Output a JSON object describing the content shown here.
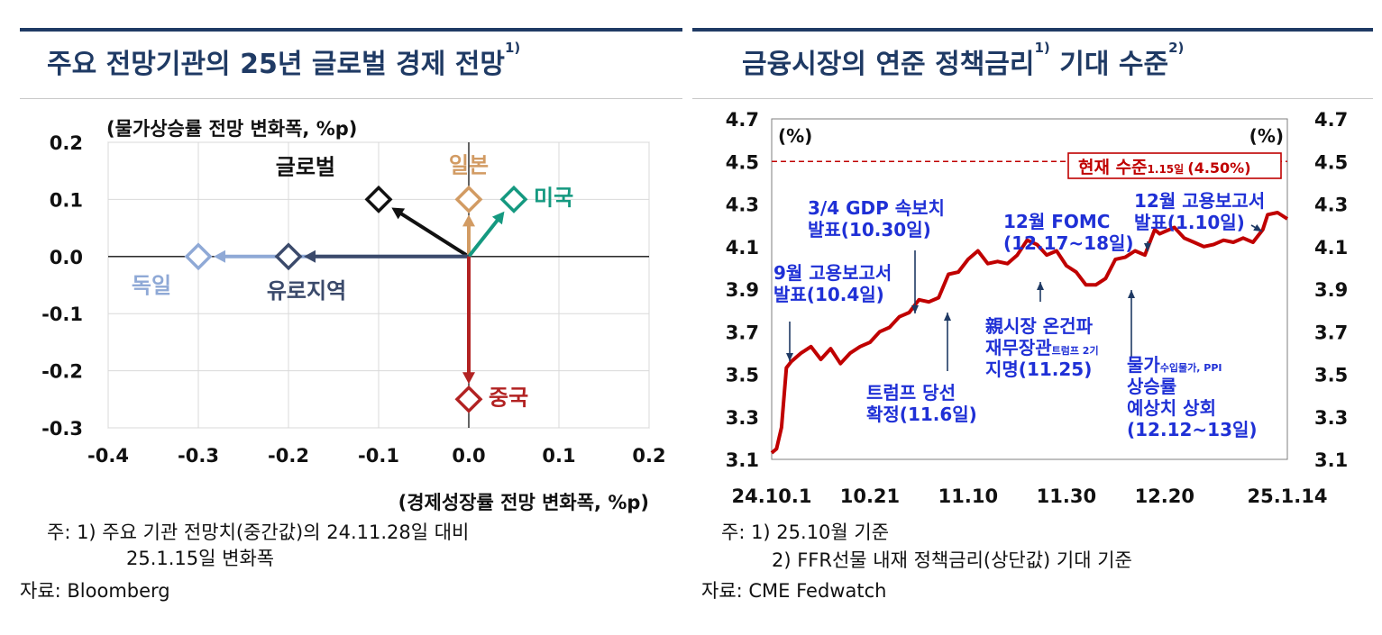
{
  "left": {
    "title": "주요 전망기관의 25년 글로벌 경제 전망",
    "title_sup": "1)",
    "notes": {
      "line1": "주: 1) 주요 기관 전망치(중간값)의 24.11.28일 대비",
      "line2": "25.1.15일 변화폭",
      "source": "자료: Bloomberg"
    }
  },
  "right": {
    "title": "금융시장의 연준 정책금리",
    "title_sup1": "1)",
    "title_mid": " 기대 수준",
    "title_sup2": "2)",
    "notes": {
      "line1": "주: 1) 25.10월 기준",
      "line2": "2) FFR선물 내재 정책금리(상단값) 기대 기준",
      "source": "자료: CME Fedwatch"
    }
  },
  "chart_data": [
    {
      "type": "scatter",
      "title": "",
      "xlabel": "(경제성장률 전망 변화폭, %p)",
      "ylabel": "(물가상승률 전망 변화폭, %p)",
      "xlim": [
        -0.4,
        0.2
      ],
      "ylim": [
        -0.3,
        0.2
      ],
      "xticks": [
        -0.4,
        -0.3,
        -0.2,
        -0.1,
        0.0,
        0.1,
        0.2
      ],
      "yticks": [
        -0.3,
        -0.2,
        -0.1,
        0.0,
        0.1,
        0.2
      ],
      "xtick_labels": [
        "-0.4",
        "-0.3",
        "-0.2",
        "-0.1",
        "0.0",
        "0.1",
        "0.2"
      ],
      "ytick_labels": [
        "-0.3",
        "-0.2",
        "-0.1",
        "0.0",
        "0.1",
        "0.2"
      ],
      "grid": true,
      "marker": "hollow diamond with arrow from origin",
      "points": [
        {
          "name": "글로벌",
          "x": -0.1,
          "y": 0.1,
          "color": "#111111",
          "label_pos": "top-left"
        },
        {
          "name": "일본",
          "x": 0.0,
          "y": 0.1,
          "color": "#d29b63",
          "label_pos": "top"
        },
        {
          "name": "미국",
          "x": 0.05,
          "y": 0.1,
          "color": "#159980",
          "label_pos": "right"
        },
        {
          "name": "독일",
          "x": -0.3,
          "y": 0.0,
          "color": "#8fa9d6",
          "label_pos": "bottom-left"
        },
        {
          "name": "유로지역",
          "x": -0.2,
          "y": 0.0,
          "color": "#3b4a6b",
          "label_pos": "bottom"
        },
        {
          "name": "중국",
          "x": 0.0,
          "y": -0.25,
          "color": "#b22222",
          "label_pos": "right"
        }
      ]
    },
    {
      "type": "line",
      "title": "",
      "unit_left": "(%)",
      "unit_right": "(%)",
      "ylim": [
        3.1,
        4.7
      ],
      "yticks": [
        3.1,
        3.3,
        3.5,
        3.7,
        3.9,
        4.1,
        4.3,
        4.5,
        4.7
      ],
      "ytick_labels": [
        "3.1",
        "3.3",
        "3.5",
        "3.7",
        "3.9",
        "4.1",
        "4.3",
        "4.5",
        "4.7"
      ],
      "x_start": "2024-10-01",
      "x_end": "2025-01-14",
      "xticks": [
        "2024-10-01",
        "2024-10-21",
        "2024-11-10",
        "2024-11-30",
        "2024-12-20",
        "2025-01-14"
      ],
      "xtick_labels": [
        "24.10.1",
        "10.21",
        "11.10",
        "11.30",
        "12.20",
        "25.1.14"
      ],
      "grid": false,
      "series": [
        {
          "color": "#c00000",
          "x": [
            "2024-10-01",
            "2024-10-02",
            "2024-10-03",
            "2024-10-04",
            "2024-10-05",
            "2024-10-07",
            "2024-10-09",
            "2024-10-11",
            "2024-10-13",
            "2024-10-15",
            "2024-10-17",
            "2024-10-19",
            "2024-10-21",
            "2024-10-23",
            "2024-10-25",
            "2024-10-27",
            "2024-10-29",
            "2024-10-31",
            "2024-11-02",
            "2024-11-04",
            "2024-11-06",
            "2024-11-08",
            "2024-11-10",
            "2024-11-12",
            "2024-11-14",
            "2024-11-16",
            "2024-11-18",
            "2024-11-20",
            "2024-11-22",
            "2024-11-24",
            "2024-11-26",
            "2024-11-28",
            "2024-11-30",
            "2024-12-02",
            "2024-12-04",
            "2024-12-06",
            "2024-12-08",
            "2024-12-10",
            "2024-12-12",
            "2024-12-14",
            "2024-12-16",
            "2024-12-18",
            "2024-12-19",
            "2024-12-20",
            "2024-12-22",
            "2024-12-24",
            "2024-12-26",
            "2024-12-28",
            "2024-12-30",
            "2025-01-01",
            "2025-01-03",
            "2025-01-05",
            "2025-01-07",
            "2025-01-09",
            "2025-01-10",
            "2025-01-12",
            "2025-01-14"
          ],
          "values": [
            3.13,
            3.15,
            3.25,
            3.53,
            3.56,
            3.6,
            3.63,
            3.57,
            3.62,
            3.55,
            3.6,
            3.63,
            3.65,
            3.7,
            3.72,
            3.77,
            3.79,
            3.85,
            3.84,
            3.86,
            3.97,
            3.98,
            4.04,
            4.08,
            4.02,
            4.03,
            4.02,
            4.06,
            4.13,
            4.11,
            4.06,
            4.08,
            4.01,
            3.98,
            3.92,
            3.92,
            3.95,
            4.04,
            4.05,
            4.08,
            4.06,
            4.18,
            4.16,
            4.17,
            4.19,
            4.14,
            4.12,
            4.1,
            4.11,
            4.13,
            4.12,
            4.14,
            4.12,
            4.18,
            4.25,
            4.26,
            4.23
          ]
        }
      ],
      "reference_line": {
        "value": 4.5,
        "label_main": "현재 수준",
        "label_small": "1.15일",
        "label_value": "(4.50%)",
        "color": "#c00000",
        "style": "dashed"
      },
      "annotations": [
        {
          "lines": [
            "9월 고용보고서",
            "발표(10.4일)"
          ],
          "x": "2024-10-04"
        },
        {
          "lines": [
            "3/4 GDP 속보치",
            "발표(10.30일)"
          ],
          "x": "2024-10-30"
        },
        {
          "lines": [
            "트럼프 당선",
            "확정(11.6일)"
          ],
          "x": "2024-11-06"
        },
        {
          "lines": [
            "12월 FOMC",
            "(12.17~18일)"
          ],
          "x": "2024-12-18"
        },
        {
          "lines": [
            "親시장 온건파",
            "재무장관",
            "지명(11.25)"
          ],
          "small": "트럼프 2기",
          "x": "2024-11-25"
        },
        {
          "lines": [
            "12월 고용보고서",
            "발표(1.10일)"
          ],
          "x": "2025-01-10"
        },
        {
          "lines": [
            "물가",
            "상승률",
            "예상치 상회",
            "(12.12~13일)"
          ],
          "small": "수입물가, PPI",
          "x": "2024-12-12"
        }
      ]
    }
  ]
}
